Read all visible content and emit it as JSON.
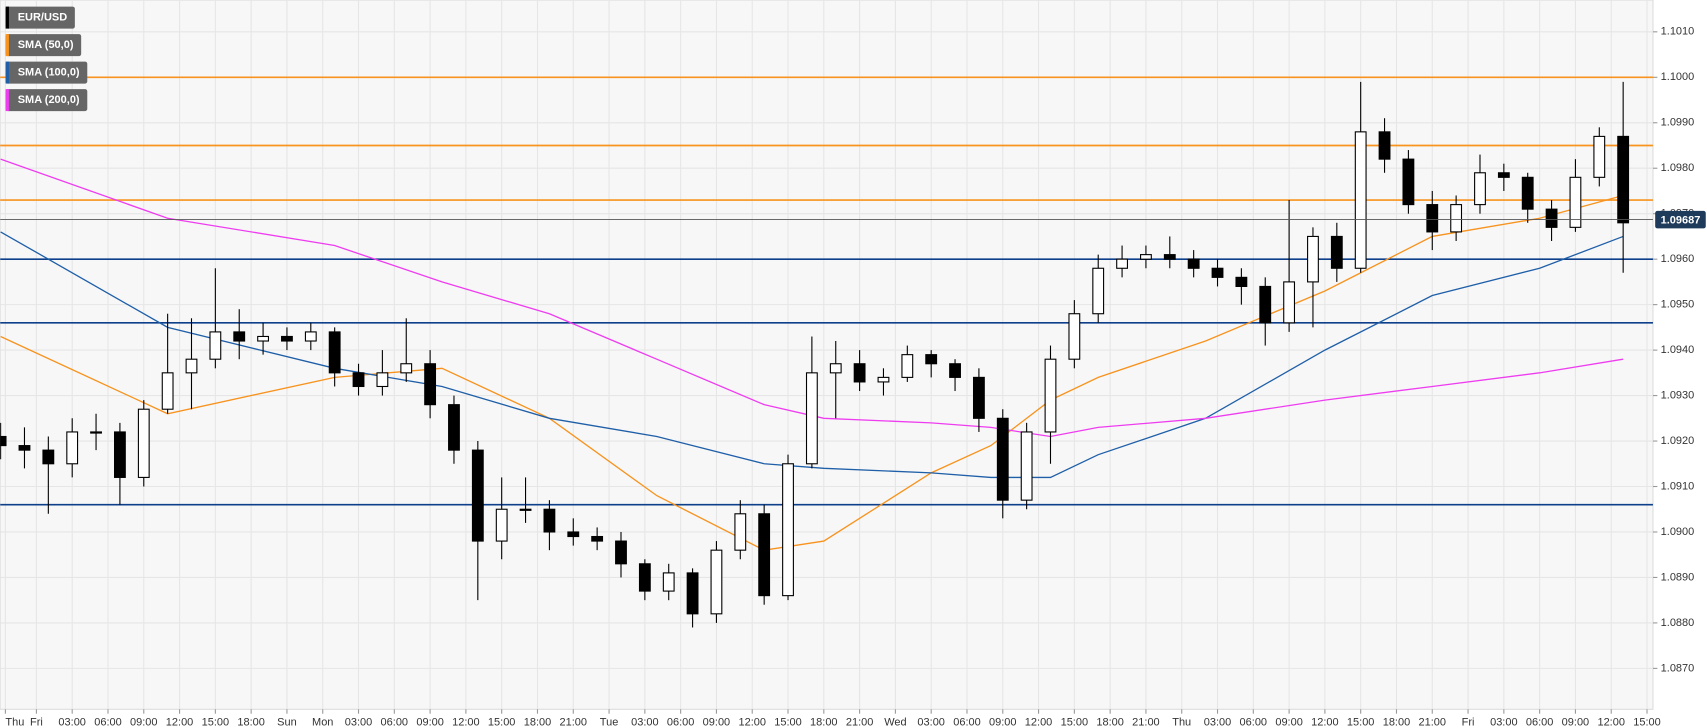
{
  "chart_data": {
    "type": "candlestick",
    "xlim": [
      -3.04,
      135.5
    ],
    "ylim": [
      1.0861,
      1.1017
    ],
    "yticks": [
      {
        "value": 1.087,
        "label": "1.0870"
      },
      {
        "value": 1.088,
        "label": "1.0880"
      },
      {
        "value": 1.089,
        "label": "1.0890"
      },
      {
        "value": 1.09,
        "label": "1.0900"
      },
      {
        "value": 1.091,
        "label": "1.0910"
      },
      {
        "value": 1.092,
        "label": "1.0920"
      },
      {
        "value": 1.093,
        "label": "1.0930"
      },
      {
        "value": 1.094,
        "label": "1.0940"
      },
      {
        "value": 1.095,
        "label": "1.0950"
      },
      {
        "value": 1.096,
        "label": "1.0960"
      },
      {
        "value": 1.097,
        "label": "1.0970"
      },
      {
        "value": 1.098,
        "label": "1.0980"
      },
      {
        "value": 1.099,
        "label": "1.0990"
      },
      {
        "value": 1.1,
        "label": "1.1000"
      },
      {
        "value": 1.101,
        "label": "1.1010"
      }
    ],
    "xticks": [
      {
        "value": -2.6,
        "label": "Thu"
      },
      {
        "value": 0,
        "label": "Fri"
      },
      {
        "value": 3,
        "label": "03:00"
      },
      {
        "value": 6,
        "label": "06:00"
      },
      {
        "value": 9,
        "label": "09:00"
      },
      {
        "value": 12,
        "label": "12:00"
      },
      {
        "value": 15,
        "label": "15:00"
      },
      {
        "value": 18,
        "label": "18:00"
      },
      {
        "value": 21,
        "label": "Sun"
      },
      {
        "value": 24,
        "label": "Mon"
      },
      {
        "value": 27,
        "label": "03:00"
      },
      {
        "value": 30,
        "label": "06:00"
      },
      {
        "value": 33,
        "label": "09:00"
      },
      {
        "value": 36,
        "label": "12:00"
      },
      {
        "value": 39,
        "label": "15:00"
      },
      {
        "value": 42,
        "label": "18:00"
      },
      {
        "value": 45,
        "label": "21:00"
      },
      {
        "value": 48,
        "label": "Tue"
      },
      {
        "value": 51,
        "label": "03:00"
      },
      {
        "value": 54,
        "label": "06:00"
      },
      {
        "value": 57,
        "label": "09:00"
      },
      {
        "value": 60,
        "label": "12:00"
      },
      {
        "value": 63,
        "label": "15:00"
      },
      {
        "value": 66,
        "label": "18:00"
      },
      {
        "value": 69,
        "label": "21:00"
      },
      {
        "value": 72,
        "label": "Wed"
      },
      {
        "value": 75,
        "label": "03:00"
      },
      {
        "value": 78,
        "label": "06:00"
      },
      {
        "value": 81,
        "label": "09:00"
      },
      {
        "value": 84,
        "label": "12:00"
      },
      {
        "value": 87,
        "label": "15:00"
      },
      {
        "value": 90,
        "label": "18:00"
      },
      {
        "value": 93,
        "label": "21:00"
      },
      {
        "value": 96,
        "label": "Thu"
      },
      {
        "value": 99,
        "label": "03:00"
      },
      {
        "value": 102,
        "label": "06:00"
      },
      {
        "value": 105,
        "label": "09:00"
      },
      {
        "value": 108,
        "label": "12:00"
      },
      {
        "value": 111,
        "label": "15:00"
      },
      {
        "value": 114,
        "label": "18:00"
      },
      {
        "value": 117,
        "label": "21:00"
      },
      {
        "value": 120,
        "label": "Fri"
      },
      {
        "value": 123,
        "label": "03:00"
      },
      {
        "value": 126,
        "label": "06:00"
      },
      {
        "value": 129,
        "label": "09:00"
      },
      {
        "value": 132,
        "label": "12:00"
      },
      {
        "value": 135,
        "label": "15:00"
      }
    ],
    "grid": true,
    "candles": {
      "name": "EUR/USD",
      "color": "#000000",
      "x": [
        -3,
        -1,
        1,
        3,
        5,
        7,
        9,
        11,
        13,
        15,
        17,
        19,
        21,
        23,
        25,
        27,
        29,
        31,
        33,
        35,
        37,
        39,
        41,
        43,
        45,
        47,
        49,
        51,
        53,
        55,
        57,
        59,
        61,
        63,
        65,
        67,
        69,
        71,
        73,
        75,
        77,
        79,
        81,
        83,
        85,
        87,
        89,
        91,
        93,
        95,
        97,
        99,
        101,
        103,
        105,
        107,
        109,
        111,
        113,
        115,
        117,
        119,
        121,
        123,
        125,
        127,
        129,
        131,
        133
      ],
      "open": [
        1.0921,
        1.0919,
        1.0918,
        1.0915,
        1.0922,
        1.0922,
        1.0912,
        1.0927,
        1.0935,
        1.0938,
        1.0944,
        1.0942,
        1.0943,
        1.0942,
        1.0944,
        1.0935,
        1.0932,
        1.0935,
        1.0937,
        1.0928,
        1.0918,
        1.0898,
        1.0905,
        1.0905,
        1.09,
        1.0899,
        1.0898,
        1.0893,
        1.0887,
        1.0891,
        1.0882,
        1.0896,
        1.0904,
        1.0886,
        1.0915,
        1.0935,
        1.0937,
        1.0933,
        1.0934,
        1.0939,
        1.0937,
        1.0934,
        1.0925,
        1.0907,
        1.0922,
        1.0938,
        1.0948,
        1.0958,
        1.096,
        1.0961,
        1.096,
        1.0958,
        1.0956,
        1.0954,
        1.0946,
        1.0955,
        1.0965,
        1.0958,
        1.0988,
        1.0982,
        1.0972,
        1.0966,
        1.0972,
        1.0979,
        1.0978,
        1.0971,
        1.0967,
        1.0978,
        1.0987
      ],
      "high": [
        1.0924,
        1.0923,
        1.0921,
        1.0925,
        1.0926,
        1.0924,
        1.0929,
        1.0948,
        1.0947,
        1.0958,
        1.0949,
        1.0946,
        1.0945,
        1.0946,
        1.0945,
        1.0937,
        1.094,
        1.0947,
        1.094,
        1.093,
        1.092,
        1.0912,
        1.0912,
        1.0907,
        1.0903,
        1.0901,
        1.09,
        1.0894,
        1.0893,
        1.0892,
        1.0898,
        1.0907,
        1.0906,
        1.0917,
        1.0943,
        1.0942,
        1.094,
        1.0936,
        1.0941,
        1.094,
        1.0938,
        1.0936,
        1.0927,
        1.0924,
        1.0941,
        1.0951,
        1.0961,
        1.0963,
        1.0963,
        1.0965,
        1.0962,
        1.096,
        1.0958,
        1.0956,
        1.0973,
        1.0967,
        1.0968,
        1.0999,
        1.0991,
        1.0984,
        1.0975,
        1.0974,
        1.0983,
        1.0981,
        1.0979,
        1.0973,
        1.0982,
        1.0989,
        1.0999
      ],
      "low": [
        1.0916,
        1.0914,
        1.0904,
        1.0912,
        1.0918,
        1.0906,
        1.091,
        1.0926,
        1.0927,
        1.0936,
        1.0938,
        1.0939,
        1.094,
        1.094,
        1.0932,
        1.093,
        1.093,
        1.0933,
        1.0925,
        1.0915,
        1.0885,
        1.0894,
        1.0902,
        1.0896,
        1.0897,
        1.0896,
        1.089,
        1.0885,
        1.0885,
        1.0879,
        1.088,
        1.0894,
        1.0884,
        1.0885,
        1.0914,
        1.0925,
        1.0931,
        1.093,
        1.0933,
        1.0934,
        1.0931,
        1.0922,
        1.0903,
        1.0905,
        1.0915,
        1.0936,
        1.0946,
        1.0956,
        1.0958,
        1.0958,
        1.0956,
        1.0954,
        1.095,
        1.0941,
        1.0944,
        1.0945,
        1.0955,
        1.0957,
        1.0979,
        1.097,
        1.0962,
        1.0964,
        1.097,
        1.0975,
        1.0968,
        1.0964,
        1.0966,
        1.0976,
        1.0957
      ],
      "close": [
        1.0919,
        1.0918,
        1.0915,
        1.0922,
        1.0922,
        1.0912,
        1.0927,
        1.0935,
        1.0938,
        1.0944,
        1.0942,
        1.0943,
        1.0942,
        1.0944,
        1.0935,
        1.0932,
        1.0935,
        1.0937,
        1.0928,
        1.0918,
        1.0898,
        1.0905,
        1.0905,
        1.09,
        1.0899,
        1.0898,
        1.0893,
        1.0887,
        1.0891,
        1.0882,
        1.0896,
        1.0904,
        1.0886,
        1.0915,
        1.0935,
        1.0937,
        1.0933,
        1.0934,
        1.0939,
        1.0937,
        1.0934,
        1.0925,
        1.0907,
        1.0922,
        1.0938,
        1.0948,
        1.0958,
        1.096,
        1.0961,
        1.096,
        1.0958,
        1.0956,
        1.0954,
        1.0946,
        1.0955,
        1.0965,
        1.0958,
        1.0988,
        1.0982,
        1.0972,
        1.0966,
        1.0972,
        1.0979,
        1.0978,
        1.0971,
        1.0967,
        1.0978,
        1.0987,
        1.0968
      ]
    },
    "series": [
      {
        "name": "SMA (50,0)",
        "color": "#f7931e",
        "x": [
          -3,
          11,
          25,
          34,
          43,
          52,
          61,
          66,
          75,
          80,
          85,
          89,
          98,
          108,
          117,
          126,
          133
        ],
        "values": [
          1.0943,
          1.0926,
          1.0934,
          1.0936,
          1.0925,
          1.0908,
          1.0896,
          1.0898,
          1.0913,
          1.0919,
          1.0929,
          1.0934,
          1.0942,
          1.0953,
          1.0965,
          1.0969,
          1.0974
        ]
      },
      {
        "name": "SMA (100,0)",
        "color": "#1f5fa8",
        "x": [
          -3,
          11,
          25,
          34,
          43,
          52,
          61,
          66,
          75,
          80,
          85,
          89,
          98,
          108,
          117,
          126,
          133
        ],
        "values": [
          1.0966,
          1.0945,
          1.0936,
          1.0932,
          1.0925,
          1.0921,
          1.0915,
          1.0914,
          1.0913,
          1.0912,
          1.0912,
          1.0917,
          1.0925,
          1.094,
          1.0952,
          1.0958,
          1.0965
        ]
      },
      {
        "name": "SMA (200,0)",
        "color": "#ee3df0",
        "x": [
          -3,
          11,
          25,
          34,
          43,
          52,
          61,
          66,
          75,
          80,
          85,
          89,
          98,
          108,
          117,
          126,
          133
        ],
        "values": [
          1.0982,
          1.0969,
          1.0963,
          1.0955,
          1.0948,
          1.0938,
          1.0928,
          1.0925,
          1.0924,
          1.0923,
          1.0921,
          1.0923,
          1.0925,
          1.0929,
          1.0932,
          1.0935,
          1.0938
        ]
      }
    ],
    "levels": [
      {
        "value": 1.1,
        "color": "#f7931e"
      },
      {
        "value": 1.0985,
        "color": "#f7931e"
      },
      {
        "value": 1.0973,
        "color": "#f7931e"
      },
      {
        "value": 1.096,
        "color": "#0d3f8a"
      },
      {
        "value": 1.0946,
        "color": "#0d3f8a"
      },
      {
        "value": 1.0906,
        "color": "#0d3f8a"
      }
    ],
    "last_price": 1.09687
  }
}
